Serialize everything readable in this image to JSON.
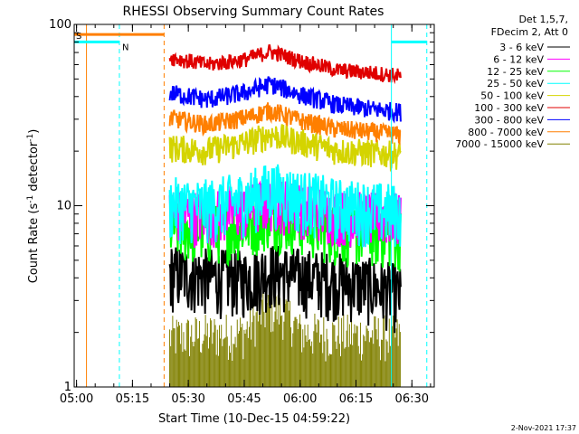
{
  "chart_data": {
    "type": "line",
    "title": "RHESSI Observing Summary Count Rates",
    "xlabel": "Start Time (10-Dec-15 04:59:22)",
    "ylabel": "Count Rate (s",
    "ylabel_sup": "-1",
    "ylabel_tail": " detector",
    "ylabel_close": ")",
    "y_scale": "log",
    "ylim": [
      1,
      100
    ],
    "xlim": [
      "04:59:22",
      "06:36:00"
    ],
    "x_ticks": [
      "05:00",
      "05:15",
      "05:30",
      "05:45",
      "06:00",
      "06:15",
      "06:30"
    ],
    "y_ticks": [
      "1",
      "10",
      "100"
    ],
    "grid": false,
    "footer_date": "2-Nov-2021 17:37",
    "legend": {
      "placement": "top-right",
      "header": [
        "Det 1,5,7,",
        "FDecim 2, Att 0"
      ],
      "entries": [
        {
          "label": "3 - 6 keV",
          "color": "#000000"
        },
        {
          "label": "6 - 12 keV",
          "color": "#ff00ff"
        },
        {
          "label": "12 - 25 keV",
          "color": "#00ff00"
        },
        {
          "label": "25 - 50 keV",
          "color": "#00ffff"
        },
        {
          "label": "50 - 100 keV",
          "color": "#d4d400"
        },
        {
          "label": "100 - 300 keV",
          "color": "#e00000"
        },
        {
          "label": "300 - 800 keV",
          "color": "#0000ff"
        },
        {
          "label": "800 - 7000 keV",
          "color": "#ff7f00"
        },
        {
          "label": "7000 - 15000 keV",
          "color": "#808000"
        }
      ]
    },
    "flags": [
      {
        "label": "S",
        "color": "#ff7f00",
        "start": "04:59:22",
        "end": "05:23:30",
        "level": 88
      },
      {
        "label": "N",
        "color": "#00ffff",
        "start": "04:59:22",
        "end": "05:11:30",
        "level": 80
      },
      {
        "label": "",
        "color": "#00ffff",
        "start": "06:24:30",
        "end": "06:34:00",
        "level": 80
      }
    ],
    "vlines": [
      {
        "time": "05:02:40",
        "color": "#ff7f00",
        "style": "solid"
      },
      {
        "time": "05:11:30",
        "color": "#00ffff",
        "style": "dashed"
      },
      {
        "time": "05:23:30",
        "color": "#ff7f00",
        "style": "dashed"
      },
      {
        "time": "06:24:30",
        "color": "#00ffff",
        "style": "solid"
      },
      {
        "time": "06:34:00",
        "color": "#00ffff",
        "style": "dashed"
      }
    ],
    "series": [
      {
        "name": "3 - 6 keV",
        "color": "#000000",
        "jitter": 0.42,
        "x": [
          "05:25",
          "05:35",
          "05:45",
          "05:52",
          "06:00",
          "06:10",
          "06:20",
          "06:25",
          "06:26",
          "06:27"
        ],
        "y": [
          4.3,
          4.1,
          4.0,
          4.4,
          4.1,
          3.9,
          3.6,
          3.4,
          3.3,
          3.2
        ]
      },
      {
        "name": "6 - 12 keV",
        "color": "#ff00ff",
        "jitter": 0.35,
        "x": [
          "05:25",
          "05:35",
          "05:45",
          "05:52",
          "06:00",
          "06:10",
          "06:20",
          "06:27"
        ],
        "y": [
          9.2,
          8.9,
          9.5,
          10.8,
          10.0,
          9.0,
          8.8,
          8.7
        ]
      },
      {
        "name": "12 - 25 keV",
        "color": "#00ff00",
        "jitter": 0.38,
        "x": [
          "05:25",
          "05:35",
          "05:45",
          "05:52",
          "06:00",
          "06:10",
          "06:20",
          "06:27"
        ],
        "y": [
          7.6,
          7.3,
          7.9,
          9.0,
          8.2,
          7.3,
          7.1,
          6.9
        ]
      },
      {
        "name": "25 - 50 keV",
        "color": "#00ffff",
        "jitter": 0.4,
        "x": [
          "05:25",
          "05:35",
          "05:45",
          "05:52",
          "06:00",
          "06:10",
          "06:20",
          "06:27"
        ],
        "y": [
          10.3,
          10.0,
          11.0,
          12.5,
          11.3,
          10.1,
          9.7,
          9.4
        ]
      },
      {
        "name": "50 - 100 keV",
        "color": "#d4d400",
        "jitter": 0.18,
        "x": [
          "05:25",
          "05:35",
          "05:45",
          "05:52",
          "06:00",
          "06:10",
          "06:20",
          "06:27"
        ],
        "y": [
          21,
          20.2,
          22.2,
          24.8,
          22.6,
          20.2,
          19.6,
          19.2
        ]
      },
      {
        "name": "100 - 300 keV",
        "color": "#e00000",
        "jitter": 0.1,
        "x": [
          "05:25",
          "05:35",
          "05:45",
          "05:52",
          "06:00",
          "06:10",
          "06:20",
          "06:27"
        ],
        "y": [
          66,
          60,
          64,
          71,
          63,
          56,
          54,
          52
        ]
      },
      {
        "name": "300 - 800 keV",
        "color": "#0000ff",
        "jitter": 0.12,
        "x": [
          "05:25",
          "05:35",
          "05:45",
          "05:52",
          "06:00",
          "06:10",
          "06:20",
          "06:27"
        ],
        "y": [
          42,
          38.5,
          42,
          47,
          41,
          36,
          34,
          33
        ]
      },
      {
        "name": "800 - 7000 keV",
        "color": "#ff7f00",
        "jitter": 0.12,
        "x": [
          "05:25",
          "05:35",
          "05:45",
          "05:52",
          "06:00",
          "06:10",
          "06:20",
          "06:27"
        ],
        "y": [
          30.5,
          28,
          30.5,
          33.5,
          29.5,
          26.5,
          25.5,
          24.5
        ]
      },
      {
        "name": "7000 - 15000 keV",
        "color": "#808000",
        "jitter": 0.0,
        "x": [
          "05:25",
          "05:45",
          "05:50",
          "05:53",
          "05:57",
          "06:00",
          "06:10",
          "06:20",
          "06:27"
        ],
        "y": [
          1.9,
          2.0,
          2.6,
          2.7,
          2.5,
          2.0,
          1.95,
          1.95,
          1.9
        ]
      }
    ]
  }
}
